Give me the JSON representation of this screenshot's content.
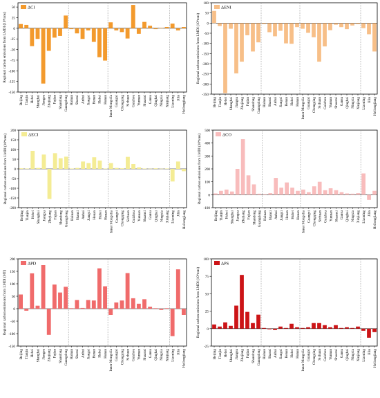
{
  "chart_data": [
    {
      "type": "bar",
      "legend": "ΔCI",
      "color": "#f39a2d",
      "ylabel": "Regional carbon emissions from LMDI (10⁴tons)",
      "ylim": [
        -150,
        60
      ],
      "yticks": [
        -150,
        -125,
        -100,
        -75,
        -50,
        -25,
        0,
        25,
        50
      ],
      "categories": [
        "Beijing",
        "Tianjin",
        "Hebei",
        "Shanghai",
        "Jiangsu",
        "Zhejiang",
        "Fujian",
        "Shandong",
        "Guangdong",
        "Hainan",
        "Shanxi",
        "Anhui",
        "Jiangxi",
        "Henan",
        "Hubei",
        "Hunan",
        "Inner Mongolia",
        "Guangxi",
        "Chongqing",
        "Sichuan",
        "Guizhou",
        "Yunnan",
        "Shaanxi",
        "Gansu",
        "Qinghai",
        "Ningxia",
        "Xinjiang",
        "Liaoning",
        "Jilin",
        "Heilongjiang"
      ],
      "values": [
        10,
        8,
        -42,
        -25,
        -130,
        -53,
        -22,
        -18,
        30,
        -2,
        -12,
        -25,
        -5,
        -32,
        -68,
        -76,
        14,
        -5,
        -9,
        -24,
        55,
        -13,
        15,
        6,
        -2,
        1,
        3,
        11,
        -5,
        3
      ],
      "separators_after": [
        8,
        15,
        26
      ]
    },
    {
      "type": "bar",
      "legend": "ΔENI",
      "color": "#f7bf88",
      "ylabel": "Regional carbon emissions from LMDI (10⁴tons)",
      "ylim": [
        -350,
        100
      ],
      "yticks": [
        -350,
        -300,
        -250,
        -200,
        -150,
        -100,
        -50,
        0,
        50,
        100
      ],
      "categories": [
        "Beijing",
        "Tianjin",
        "Hebei",
        "Shanghai",
        "Jiangsu",
        "Zhejiang",
        "Fujian",
        "Shandong",
        "Guangdong",
        "Hainan",
        "Shanxi",
        "Anhui",
        "Jiangxi",
        "Henan",
        "Hubei",
        "Hunan",
        "Inner Mongolia",
        "Guangxi",
        "Chongqing",
        "Sichuan",
        "Guizhou",
        "Yunnan",
        "Shaanxi",
        "Gansu",
        "Qinghai",
        "Ningxia",
        "Xinjiang",
        "Liaoning",
        "Jilin",
        "Heilongjiang"
      ],
      "values": [
        60,
        -15,
        -345,
        -28,
        -248,
        -190,
        -60,
        -140,
        -95,
        -5,
        -45,
        -65,
        -38,
        -100,
        -102,
        -20,
        -28,
        -48,
        -70,
        -190,
        -115,
        -35,
        -8,
        -20,
        -30,
        -12,
        -5,
        -25,
        -55,
        -140
      ],
      "separators_after": [
        8,
        15,
        26
      ]
    },
    {
      "type": "bar",
      "legend": "ΔECI",
      "color": "#f4ec94",
      "ylabel": "Regional carbon emissions from LMDI (10⁴tons)",
      "ylim": [
        -200,
        200
      ],
      "yticks": [
        -200,
        -150,
        -100,
        -50,
        0,
        50,
        100,
        150,
        200
      ],
      "categories": [
        "Beijing",
        "Tianjin",
        "Hebei",
        "Shanghai",
        "Jiangsu",
        "Zhejiang",
        "Fujian",
        "Shandong",
        "Guangdong",
        "Hainan",
        "Shanxi",
        "Anhui",
        "Jiangxi",
        "Henan",
        "Hubei",
        "Hunan",
        "Inner Mongolia",
        "Guangxi",
        "Chongqing",
        "Sichuan",
        "Guizhou",
        "Yunnan",
        "Shaanxi",
        "Gansu",
        "Qinghai",
        "Ningxia",
        "Xinjiang",
        "Liaoning",
        "Jilin",
        "Heilongjiang"
      ],
      "values": [
        3,
        2,
        93,
        5,
        74,
        -155,
        81,
        55,
        63,
        2,
        5,
        38,
        30,
        60,
        43,
        2,
        30,
        5,
        3,
        62,
        25,
        8,
        2,
        1,
        3,
        1,
        2,
        -65,
        38,
        -12
      ],
      "separators_after": [
        8,
        15,
        26
      ]
    },
    {
      "type": "bar",
      "legend": "ΔCO",
      "color": "#f8bcbc",
      "ylabel": "Regional carbon emissions from LMDI (10⁴tons)",
      "ylim": [
        -100,
        500
      ],
      "yticks": [
        -100,
        0,
        100,
        200,
        300,
        400,
        500
      ],
      "categories": [
        "Beijing",
        "Tianjin",
        "Hebei",
        "Shanghai",
        "Jiangsu",
        "Zhejiang",
        "Fujian",
        "Shandong",
        "Guangdong",
        "Hainan",
        "Shanxi",
        "Anhui",
        "Jiangxi",
        "Henan",
        "Hubei",
        "Hunan",
        "Inner Mongolia",
        "Guangxi",
        "Chongqing",
        "Sichuan",
        "Guizhou",
        "Yunnan",
        "Shaanxi",
        "Gansu",
        "Qinghai",
        "Ningxia",
        "Xinjiang",
        "Liaoning",
        "Jilin",
        "Heilongjiang"
      ],
      "values": [
        10,
        30,
        40,
        25,
        200,
        430,
        150,
        80,
        8,
        5,
        12,
        130,
        55,
        95,
        55,
        30,
        40,
        20,
        65,
        100,
        35,
        50,
        35,
        20,
        10,
        8,
        12,
        165,
        -40,
        30
      ],
      "separators_after": [
        8,
        15,
        26
      ]
    },
    {
      "type": "bar",
      "legend": "ΔPD",
      "color": "#f06b6b",
      "ylabel": "Regional carbon emissions from LMDI (MT)",
      "ylim": [
        -150,
        200
      ],
      "yticks": [
        -150,
        -100,
        -50,
        0,
        50,
        100,
        150,
        200
      ],
      "categories": [
        "Beijing",
        "Tianjin",
        "Hebei",
        "Shanghai",
        "Jiangsu",
        "Zhejiang",
        "Fujian",
        "Shandong",
        "Guangdong",
        "Hainan",
        "Shanxi",
        "Anhui",
        "Jiangxi",
        "Henan",
        "Hubei",
        "Hunan",
        "Inner Mongolia",
        "Guangxi",
        "Chongqing",
        "Sichuan",
        "Guizhou",
        "Yunnan",
        "Shaanxi",
        "Gansu",
        "Qinghai",
        "Ningxia",
        "Xinjiang",
        "Liaoning",
        "Jilin",
        "Heilongjiang"
      ],
      "values": [
        57,
        -8,
        142,
        12,
        175,
        -105,
        97,
        65,
        88,
        2,
        35,
        3,
        35,
        33,
        162,
        90,
        -25,
        25,
        33,
        143,
        42,
        20,
        38,
        8,
        2,
        -5,
        2,
        -110,
        158,
        -25
      ],
      "separators_after": [
        8,
        15,
        26
      ]
    },
    {
      "type": "bar",
      "legend": "ΔPS",
      "color": "#cc1417",
      "ylabel": "Regional carbon emissions from LMDI (10⁴tons)",
      "ylim": [
        -25,
        100
      ],
      "yticks": [
        -25,
        0,
        25,
        50,
        75,
        100
      ],
      "categories": [
        "Beijing",
        "Tianjin",
        "Hebei",
        "Shanghai",
        "Jiangsu",
        "Zhejiang",
        "Fujian",
        "Shandong",
        "Guangdong",
        "Hainan",
        "Shanxi",
        "Anhui",
        "Jiangxi",
        "Henan",
        "Hubei",
        "Hunan",
        "Inner Mongolia",
        "Guangxi",
        "Chongqing",
        "Sichuan",
        "Guizhou",
        "Yunnan",
        "Shaanxi",
        "Gansu",
        "Qinghai",
        "Ningxia",
        "Xinjiang",
        "Liaoning",
        "Jilin",
        "Heilongjiang"
      ],
      "values": [
        6,
        3,
        9,
        4,
        33,
        77,
        24,
        8,
        20,
        1,
        -1,
        -2,
        3,
        1,
        7,
        2,
        1,
        2,
        8,
        8,
        5,
        2,
        5,
        1,
        2,
        1,
        3,
        -3,
        -13,
        -5
      ],
      "separators_after": [
        8,
        15,
        26
      ]
    }
  ]
}
